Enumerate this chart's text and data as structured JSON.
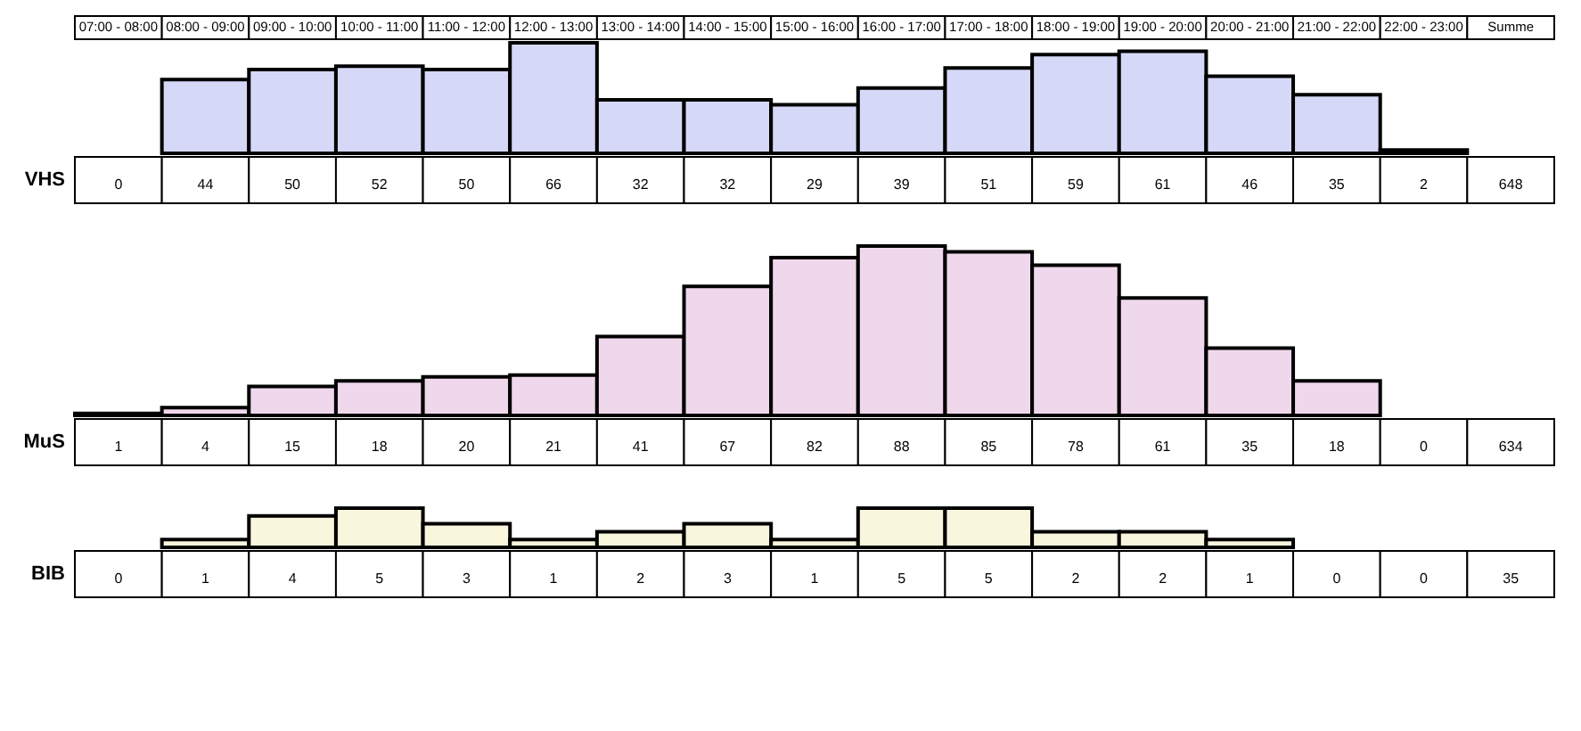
{
  "chart_data": [
    {
      "type": "bar",
      "ylabel": "VHS",
      "tick_labels": "x",
      "categories": [
        "07:00 - 08:00",
        "08:00 - 09:00",
        "09:00 - 10:00",
        "10:00 - 11:00",
        "11:00 - 12:00",
        "12:00 - 13:00",
        "13:00 - 14:00",
        "14:00 - 15:00",
        "15:00 - 16:00",
        "16:00 - 17:00",
        "17:00 - 18:00",
        "18:00 - 19:00",
        "19:00 - 20:00",
        "20:00 - 21:00",
        "21:00 - 22:00",
        "22:00 - 23:00",
        "Summe"
      ],
      "values": [
        0,
        44,
        50,
        52,
        50,
        66,
        32,
        32,
        29,
        39,
        51,
        59,
        61,
        46,
        35,
        2,
        null
      ],
      "value_labels": [
        "0",
        "44",
        "50",
        "52",
        "50",
        "66",
        "32",
        "32",
        "29",
        "39",
        "51",
        "59",
        "61",
        "46",
        "35",
        "2",
        "648"
      ],
      "color": "#d6d8f8"
    },
    {
      "type": "bar",
      "ylabel": "MuS",
      "tick_labels": false,
      "values": [
        1,
        4,
        15,
        18,
        20,
        21,
        41,
        67,
        82,
        88,
        85,
        78,
        61,
        35,
        18,
        0,
        null
      ],
      "value_labels": [
        "1",
        "4",
        "15",
        "18",
        "20",
        "21",
        "41",
        "67",
        "82",
        "88",
        "85",
        "78",
        "61",
        "35",
        "18",
        "0",
        "634"
      ],
      "color": "#f0d8ec"
    },
    {
      "type": "bar",
      "ylabel": "BIB",
      "tick_labels": false,
      "values": [
        0,
        1,
        4,
        5,
        3,
        1,
        2,
        3,
        1,
        5,
        5,
        2,
        2,
        1,
        0,
        0,
        null
      ],
      "value_labels": [
        "0",
        "1",
        "4",
        "5",
        "3",
        "1",
        "2",
        "3",
        "1",
        "5",
        "5",
        "2",
        "2",
        "1",
        "0",
        "0",
        "35"
      ],
      "color": "#f8f6dc"
    }
  ]
}
